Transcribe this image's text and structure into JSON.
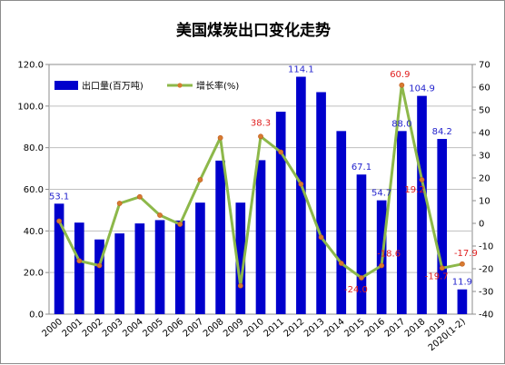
{
  "chart_data": {
    "type": "bar+line",
    "title": "美国煤炭出口变化走势",
    "categories": [
      "2000",
      "2001",
      "2002",
      "2003",
      "2004",
      "2005",
      "2006",
      "2007",
      "2008",
      "2009",
      "2010",
      "2011",
      "2012",
      "2013",
      "2014",
      "2015",
      "2016",
      "2017",
      "2018",
      "2019",
      "2020(1-2)"
    ],
    "series": [
      {
        "name": "出口量(百万吨)",
        "type": "bar",
        "axis": "left",
        "color": "#0000cc",
        "values": [
          53.1,
          44.0,
          35.9,
          38.8,
          43.6,
          45.2,
          45.0,
          53.6,
          73.8,
          53.6,
          74.0,
          97.3,
          114.1,
          106.7,
          88.0,
          67.1,
          54.7,
          88.0,
          104.9,
          84.2,
          11.9
        ]
      },
      {
        "name": "增长率(%)",
        "type": "line",
        "axis": "right",
        "color": "#8db84a",
        "marker_color": "#d77b30",
        "values": [
          1.0,
          -16.5,
          -18.6,
          8.8,
          11.7,
          3.6,
          -0.4,
          19.2,
          37.7,
          -27.5,
          38.3,
          31.4,
          17.3,
          -6.1,
          -17.6,
          -24.0,
          -18.6,
          60.9,
          19.2,
          -19.7,
          -17.9
        ]
      }
    ],
    "bar_labels": [
      {
        "index": 0,
        "text": "53.1",
        "color": "#1f1fcc"
      },
      {
        "index": 12,
        "text": "114.1",
        "color": "#1f1fcc"
      },
      {
        "index": 15,
        "text": "67.1",
        "color": "#1f1fcc"
      },
      {
        "index": 16,
        "text": "54.7",
        "color": "#1f1fcc"
      },
      {
        "index": 17,
        "text": "88.0",
        "color": "#1f1fcc"
      },
      {
        "index": 18,
        "text": "104.9",
        "color": "#1f1fcc"
      },
      {
        "index": 19,
        "text": "84.2",
        "color": "#1f1fcc"
      },
      {
        "index": 20,
        "text": "11.9",
        "color": "#1f1fcc"
      }
    ],
    "line_labels": [
      {
        "index": 10,
        "text": "38.3",
        "color": "#e02020"
      },
      {
        "index": 15,
        "text": "-24.0",
        "color": "#e02020"
      },
      {
        "index": 16,
        "text": "-18.6",
        "color": "#e02020"
      },
      {
        "index": 17,
        "text": "60.9",
        "color": "#e02020"
      },
      {
        "index": 18,
        "text": "19.2",
        "color": "#e02020"
      },
      {
        "index": 19,
        "text": "-19.7",
        "color": "#e02020"
      },
      {
        "index": 20,
        "text": "-17.9",
        "color": "#e02020"
      }
    ],
    "y_left": {
      "min": 0,
      "max": 120,
      "step": 20,
      "ticks": [
        "0.0",
        "20.0",
        "40.0",
        "60.0",
        "80.0",
        "100.0",
        "120.0"
      ]
    },
    "y_right": {
      "min": -40,
      "max": 70,
      "step": 10,
      "ticks": [
        "-40",
        "-30",
        "-20",
        "-10",
        "0",
        "10",
        "20",
        "30",
        "40",
        "50",
        "60",
        "70"
      ]
    },
    "grid": true,
    "legend_placement": "top-left"
  }
}
